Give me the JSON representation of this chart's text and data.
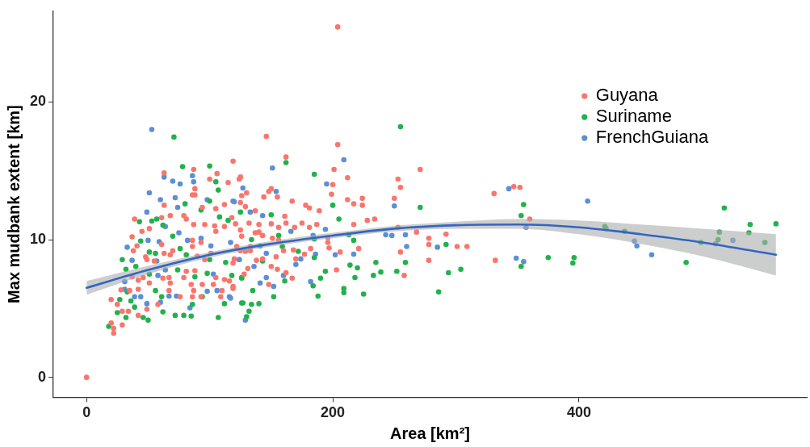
{
  "chart_data": {
    "type": "scatter",
    "xlabel": "Area [km²]",
    "ylabel": "Max mudbank extent [km]",
    "xlim": [
      -27,
      585
    ],
    "ylim": [
      -1.45,
      26.6
    ],
    "xticks": [
      0,
      200,
      400
    ],
    "yticks": [
      0,
      10,
      20
    ],
    "grid": false,
    "legend": "top right",
    "marker": "circle",
    "series": [
      {
        "name": "Guyana",
        "color": "#f8766d",
        "x": [
          204,
          146,
          204,
          119,
          162,
          271,
          253,
          255,
          201,
          200,
          212,
          199,
          212,
          217,
          224,
          224,
          250,
          228,
          234,
          217,
          253,
          268,
          278,
          278,
          292,
          301,
          309,
          255,
          278,
          258,
          203,
          221,
          206,
          197,
          196,
          196,
          189,
          178,
          181,
          167,
          187,
          181,
          175,
          169,
          161,
          162,
          155,
          150,
          148,
          144,
          130,
          126,
          125,
          124,
          125,
          129,
          137,
          118,
          121,
          125,
          132,
          140,
          140,
          137,
          143,
          126,
          150,
          156,
          151,
          156,
          160,
          154,
          168,
          177,
          170,
          182,
          167,
          162,
          155,
          150,
          148,
          143,
          138,
          131,
          128,
          119,
          133,
          133,
          125,
          129,
          122,
          116,
          331,
          347,
          352,
          360,
          332,
          87,
          63,
          88,
          86,
          88,
          100,
          106,
          115,
          63,
          39,
          51,
          37,
          45,
          41,
          38,
          48,
          49,
          55,
          61,
          68,
          79,
          81,
          87,
          94,
          105,
          112,
          104,
          105,
          112,
          96,
          61,
          63,
          68,
          70,
          86,
          86,
          93,
          90,
          101,
          96,
          120,
          119,
          81,
          79,
          88,
          85,
          87,
          67,
          68,
          62,
          51,
          46,
          42,
          37,
          42,
          35,
          28,
          25,
          20,
          29,
          34,
          42,
          49,
          22,
          22,
          29,
          20,
          58,
          67,
          76,
          86,
          93,
          109,
          110,
          119,
          112,
          105,
          103,
          94,
          0
        ],
        "values": [
          25.45,
          17.5,
          16.9,
          15.7,
          16.0,
          15.1,
          14.4,
          13.8,
          15.1,
          14.0,
          14.5,
          13.3,
          12.9,
          12.6,
          13.0,
          12.5,
          13.0,
          11.4,
          11.5,
          11.1,
          10.9,
          10.55,
          10.1,
          9.65,
          10.4,
          9.5,
          9.5,
          9.1,
          8.5,
          7.4,
          7.8,
          9.35,
          9.1,
          9.4,
          9.8,
          10.15,
          12.1,
          12.5,
          12.3,
          12.8,
          11.1,
          10.9,
          11.2,
          10.9,
          11.7,
          11.2,
          13.1,
          13.7,
          13.5,
          13.1,
          13.4,
          13.2,
          12.7,
          14.4,
          14.55,
          12.4,
          12.1,
          11.6,
          11.15,
          10.7,
          11.2,
          11.1,
          10.55,
          10.5,
          10.3,
          10.25,
          11.15,
          10.9,
          10.1,
          9.95,
          9.2,
          8.75,
          9.25,
          8.95,
          8.6,
          9.35,
          7.2,
          7.6,
          7.85,
          8.05,
          6.75,
          8.6,
          8.5,
          7.9,
          7.5,
          6.45,
          9.5,
          9.2,
          9.2,
          9.15,
          9.5,
          7.0,
          13.35,
          13.85,
          13.8,
          11.5,
          8.5,
          15.1,
          14.85,
          13.7,
          13.25,
          13.25,
          14.4,
          14.8,
          14.15,
          12.5,
          11.5,
          10.8,
          10.2,
          10.6,
          9.55,
          9.2,
          8.75,
          8.55,
          8.45,
          11.6,
          11.75,
          11.75,
          11.5,
          11.1,
          12.35,
          12.25,
          12.55,
          11.0,
          10.6,
          10.95,
          11.1,
          9.65,
          9.0,
          8.9,
          9.2,
          9.95,
          9.5,
          9.8,
          8.8,
          9.0,
          8.55,
          8.6,
          8.3,
          7.7,
          7.25,
          7.75,
          6.75,
          6.3,
          7.25,
          6.85,
          7.2,
          6.85,
          7.25,
          7.05,
          7.3,
          6.4,
          6.3,
          6.35,
          5.3,
          5.65,
          4.8,
          4.8,
          4.5,
          4.95,
          3.55,
          3.2,
          3.8,
          3.95,
          5.3,
          6.3,
          5.85,
          5.85,
          5.85,
          5.85,
          6.3,
          6.6,
          7.1,
          7.25,
          6.75,
          6.75,
          0
        ]
      },
      {
        "name": "Suriname",
        "color": "#23b14d",
        "x": [
          255,
          162,
          185,
          200,
          205,
          271,
          150,
          125,
          213,
          217,
          292,
          185,
          185,
          172,
          159,
          156,
          141,
          134,
          235,
          259,
          214,
          220,
          194,
          190,
          218,
          233,
          239,
          252,
          294,
          304,
          286,
          225,
          209,
          209,
          184,
          188,
          161,
          152,
          135,
          140,
          134,
          126,
          132,
          130,
          143,
          126,
          355,
          353,
          353,
          375,
          396,
          395,
          421,
          437,
          487,
          499,
          513,
          514,
          518,
          538,
          539,
          551,
          560,
          71,
          78,
          100,
          105,
          107,
          100,
          80,
          93,
          57,
          53,
          43,
          62,
          70,
          44,
          51,
          29,
          32,
          40,
          56,
          76,
          81,
          100,
          115,
          108,
          113,
          126,
          118,
          98,
          88,
          74,
          51,
          33,
          27,
          36,
          39,
          25,
          32,
          18,
          46,
          50,
          62,
          72,
          79,
          85,
          86,
          94,
          107,
          112,
          127,
          61,
          56
        ],
        "values": [
          18.2,
          15.6,
          14.75,
          12.5,
          11.5,
          12.35,
          11.8,
          12.0,
          10.35,
          9.95,
          9.65,
          10.05,
          8.7,
          9.15,
          9.5,
          10.3,
          9.55,
          10.0,
          8.35,
          8.35,
          8.15,
          7.95,
          7.7,
          7.2,
          7.25,
          7.4,
          7.65,
          7.7,
          7.6,
          7.85,
          6.2,
          6.05,
          6.45,
          6.15,
          6.65,
          5.9,
          7.0,
          5.85,
          6.3,
          5.35,
          5.3,
          5.4,
          4.8,
          4.4,
          8.45,
          7.2,
          12.55,
          11.75,
          8.05,
          8.7,
          8.7,
          8.3,
          10.95,
          10.6,
          8.35,
          9.8,
          10.0,
          10.55,
          12.3,
          10.5,
          11.1,
          9.8,
          11.15,
          17.45,
          15.3,
          15.35,
          14.2,
          13.6,
          12.8,
          12.6,
          12.15,
          11.5,
          11.35,
          11.3,
          11.05,
          10.25,
          9.9,
          9.1,
          8.55,
          7.85,
          8.05,
          9.0,
          9.35,
          8.9,
          8.55,
          11.4,
          11.65,
          8.35,
          7.25,
          7.4,
          7.55,
          7.3,
          7.8,
          7.5,
          6.2,
          5.65,
          5.55,
          5.1,
          4.7,
          4.35,
          3.7,
          4.35,
          4.15,
          4.75,
          4.5,
          4.5,
          4.45,
          5.3,
          5.85,
          4.35,
          5.35,
          5.4,
          5.85,
          6.3
        ]
      },
      {
        "name": "FrenchGuiana",
        "color": "#5b8fd6",
        "x": [
          53,
          63,
          70,
          76,
          86,
          87,
          51,
          60,
          72,
          98,
          49,
          74,
          120,
          64,
          75,
          50,
          33,
          59,
          82,
          93,
          101,
          117,
          37,
          57,
          64,
          58,
          103,
          124,
          31,
          39,
          44,
          49,
          60,
          67,
          73,
          84,
          98,
          106,
          116,
          129,
          31,
          209,
          151,
          195,
          154,
          127,
          119,
          133,
          143,
          166,
          194,
          184,
          250,
          243,
          248,
          259,
          260,
          285,
          217,
          202,
          186,
          174,
          170,
          160,
          152,
          182,
          146,
          141,
          124,
          136,
          117,
          146,
          343,
          407,
          357,
          422,
          445,
          447,
          459,
          511,
          525,
          349,
          355
        ],
        "values": [
          18.0,
          14.55,
          14.25,
          14.05,
          14.65,
          14.2,
          13.4,
          12.9,
          13.05,
          12.9,
          12.0,
          12.35,
          12.75,
          10.95,
          10.5,
          9.95,
          9.45,
          9.85,
          9.95,
          10.1,
          9.55,
          9.8,
          8.5,
          8.45,
          7.8,
          7.4,
          7.5,
          8.55,
          6.4,
          5.85,
          5.85,
          5.35,
          5.45,
          5.9,
          5.9,
          5.05,
          6.25,
          6.3,
          5.85,
          4.15,
          6.95,
          15.8,
          15.2,
          14.05,
          13.5,
          13.75,
          12.8,
          12.0,
          11.75,
          10.6,
          10.75,
          10.3,
          12.45,
          10.35,
          10.3,
          10.35,
          9.5,
          9.45,
          8.95,
          8.9,
          8.95,
          8.6,
          8.2,
          7.4,
          6.6,
          6.95,
          7.25,
          6.85,
          8.55,
          8.05,
          5.75,
          9.0,
          13.7,
          12.8,
          10.9,
          10.8,
          9.9,
          9.55,
          8.9,
          9.7,
          9.95,
          8.65,
          8.4
        ]
      },
      {
        "type": "line",
        "marker": "none",
        "color": "#3465c0",
        "x": [
          0,
          50,
          100,
          150,
          200,
          250,
          300,
          350,
          400,
          450,
          500,
          560
        ],
        "values": [
          6.5,
          7.8,
          8.9,
          9.7,
          10.3,
          10.8,
          11.05,
          11.1,
          10.9,
          10.4,
          9.8,
          8.9
        ],
        "lower": [
          6.0,
          7.5,
          8.7,
          9.5,
          10.1,
          10.6,
          10.8,
          10.8,
          10.4,
          9.7,
          8.8,
          7.4
        ],
        "upper": [
          7.0,
          8.1,
          9.1,
          9.9,
          10.5,
          11.0,
          11.3,
          11.5,
          11.4,
          11.1,
          10.8,
          10.4
        ]
      }
    ]
  }
}
